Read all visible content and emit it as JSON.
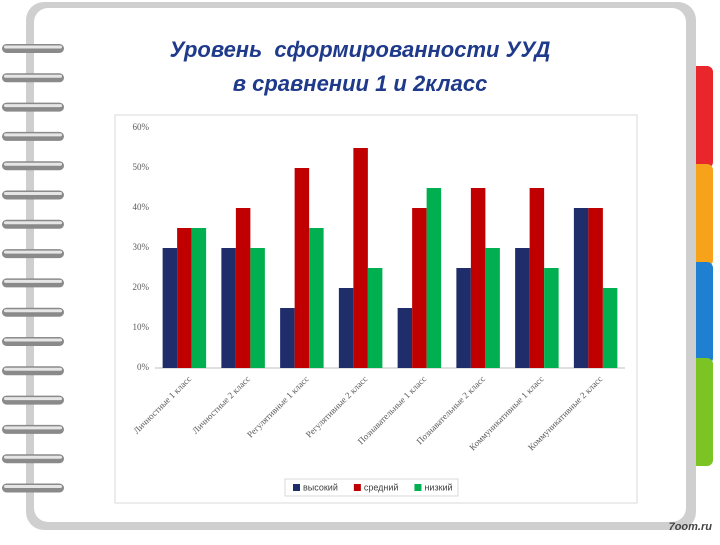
{
  "chart_data": {
    "type": "bar",
    "title": [
      "Уровень  сформированности УУД",
      "в сравнении 1 и 2класс"
    ],
    "watermark": "7oom.ru",
    "categories": [
      "Личностные 1 класс",
      "Личностные 2 класс",
      "Регулятивные 1 класс",
      "Регулятивные 2 класс",
      "Познавательные 1 класс",
      "Познавательные 2 класс",
      "Коммуникативные 1 класс",
      "Коммуникативные 2 класс"
    ],
    "series": [
      {
        "name": "высокий",
        "color": "#1f2d6b",
        "values": [
          30,
          30,
          15,
          20,
          15,
          25,
          30,
          40
        ]
      },
      {
        "name": "средний",
        "color": "#c00000",
        "values": [
          35,
          40,
          50,
          55,
          40,
          45,
          45,
          40
        ]
      },
      {
        "name": "низкий",
        "color": "#00b050",
        "values": [
          35,
          30,
          35,
          25,
          45,
          30,
          25,
          20
        ]
      }
    ],
    "ylim": [
      0,
      60
    ],
    "yticks": [
      {
        "value": 0,
        "label": "0%"
      },
      {
        "value": 10,
        "label": "10%"
      },
      {
        "value": 20,
        "label": "20%"
      },
      {
        "value": 30,
        "label": "30%"
      },
      {
        "value": 40,
        "label": "40%"
      },
      {
        "value": 50,
        "label": "50%"
      },
      {
        "value": 60,
        "label": "60%"
      }
    ],
    "grid": false,
    "legend": "bottom"
  }
}
